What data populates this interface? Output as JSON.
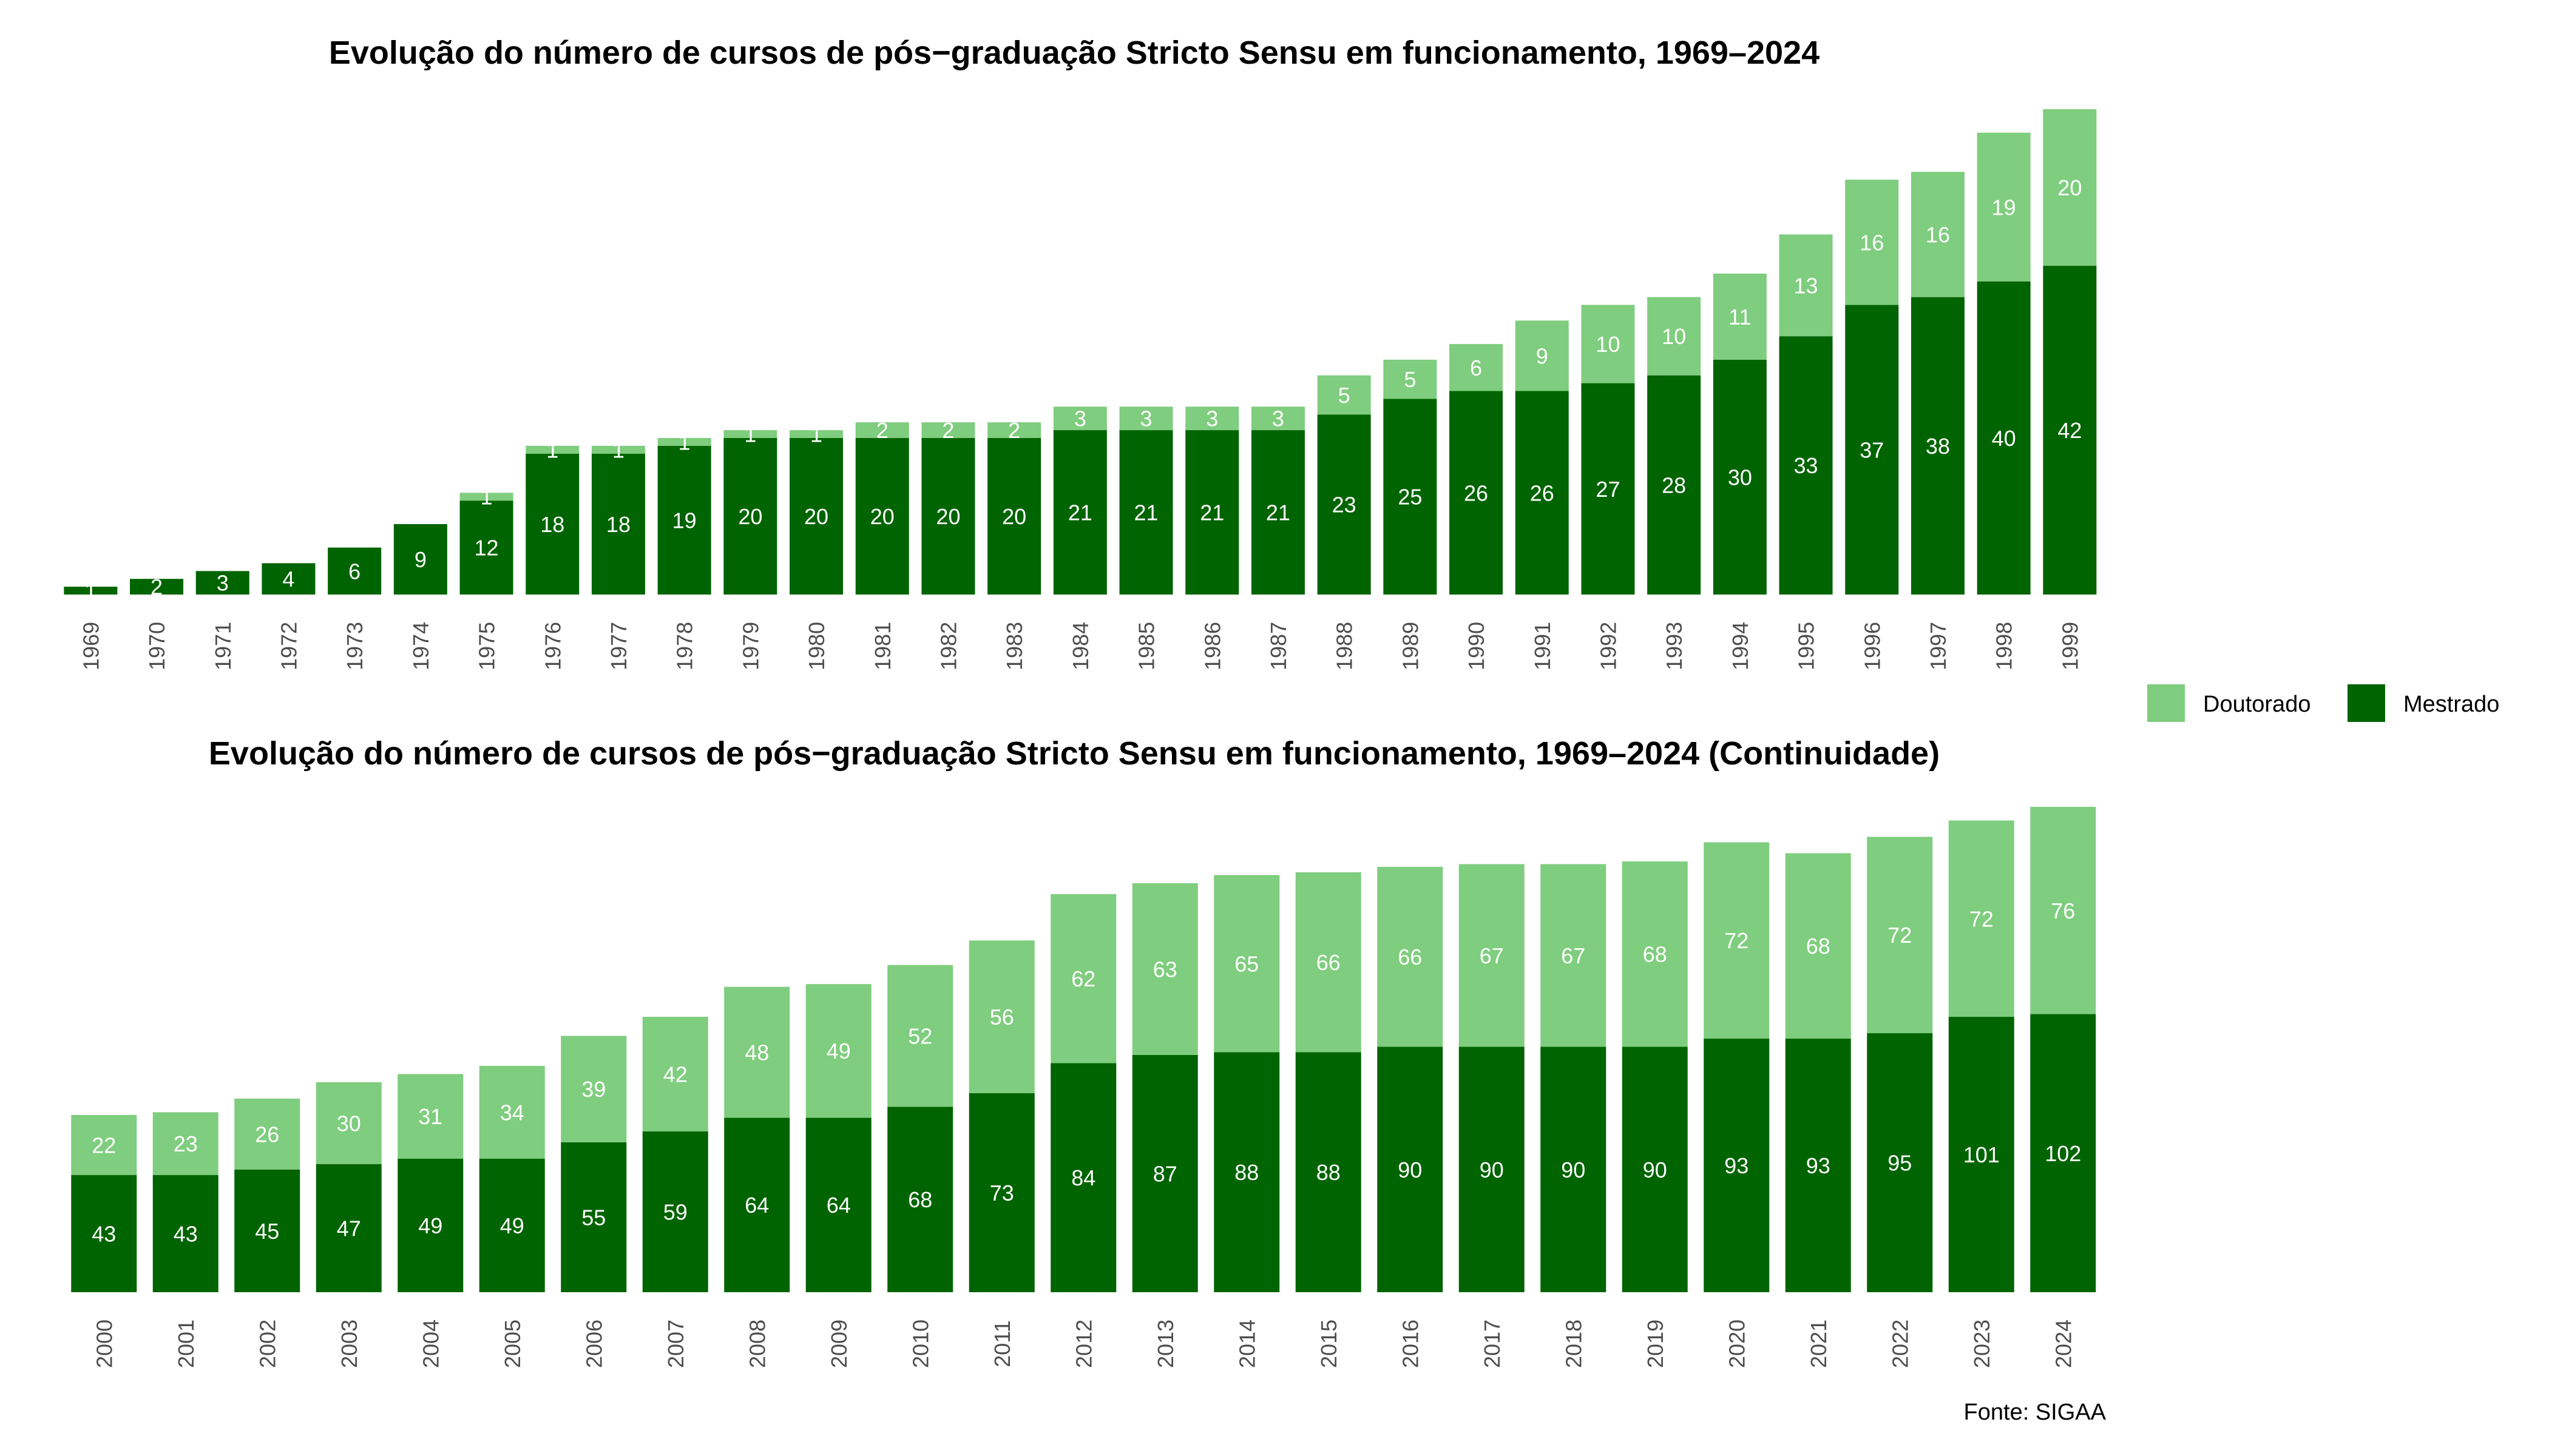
{
  "colors": {
    "mestrado": "#006400",
    "doutorado": "#7FCD7E"
  },
  "legend": {
    "doutorado_label": "Doutorado",
    "mestrado_label": "Mestrado"
  },
  "source": "Fonte: SIGAA",
  "chart_data": [
    {
      "type": "bar",
      "stacked": true,
      "title": "Evolução do número de cursos de pós−graduação Stricto Sensu em funcionamento, 1969–2024",
      "categories": [
        "1969",
        "1970",
        "1971",
        "1972",
        "1973",
        "1974",
        "1975",
        "1976",
        "1977",
        "1978",
        "1979",
        "1980",
        "1981",
        "1982",
        "1983",
        "1984",
        "1985",
        "1986",
        "1987",
        "1988",
        "1989",
        "1990",
        "1991",
        "1992",
        "1993",
        "1994",
        "1995",
        "1996",
        "1997",
        "1998",
        "1999"
      ],
      "series": [
        {
          "name": "Mestrado",
          "values": [
            1,
            2,
            3,
            4,
            6,
            9,
            12,
            18,
            18,
            19,
            20,
            20,
            20,
            20,
            20,
            21,
            21,
            21,
            21,
            23,
            25,
            26,
            26,
            27,
            28,
            30,
            33,
            37,
            38,
            40,
            42
          ]
        },
        {
          "name": "Doutorado",
          "values": [
            0,
            0,
            0,
            0,
            0,
            0,
            1,
            1,
            1,
            1,
            1,
            1,
            2,
            2,
            2,
            3,
            3,
            3,
            3,
            5,
            5,
            6,
            9,
            10,
            10,
            11,
            13,
            16,
            16,
            19,
            20
          ]
        }
      ],
      "ylim": [
        0,
        62
      ]
    },
    {
      "type": "bar",
      "stacked": true,
      "title": "Evolução do número de cursos de pós−graduação Stricto Sensu em funcionamento, 1969–2024 (Continuidade)",
      "categories": [
        "2000",
        "2001",
        "2002",
        "2003",
        "2004",
        "2005",
        "2006",
        "2007",
        "2008",
        "2009",
        "2010",
        "2011",
        "2012",
        "2013",
        "2014",
        "2015",
        "2016",
        "2017",
        "2018",
        "2019",
        "2020",
        "2021",
        "2022",
        "2023",
        "2024"
      ],
      "series": [
        {
          "name": "Mestrado",
          "values": [
            43,
            43,
            45,
            47,
            49,
            49,
            55,
            59,
            64,
            64,
            68,
            73,
            84,
            87,
            88,
            88,
            90,
            90,
            90,
            90,
            93,
            93,
            95,
            101,
            102
          ]
        },
        {
          "name": "Doutorado",
          "values": [
            22,
            23,
            26,
            30,
            31,
            34,
            39,
            42,
            48,
            49,
            52,
            56,
            62,
            63,
            65,
            66,
            66,
            67,
            67,
            68,
            72,
            68,
            72,
            72,
            76
          ]
        }
      ],
      "ylim": [
        0,
        178
      ]
    }
  ]
}
